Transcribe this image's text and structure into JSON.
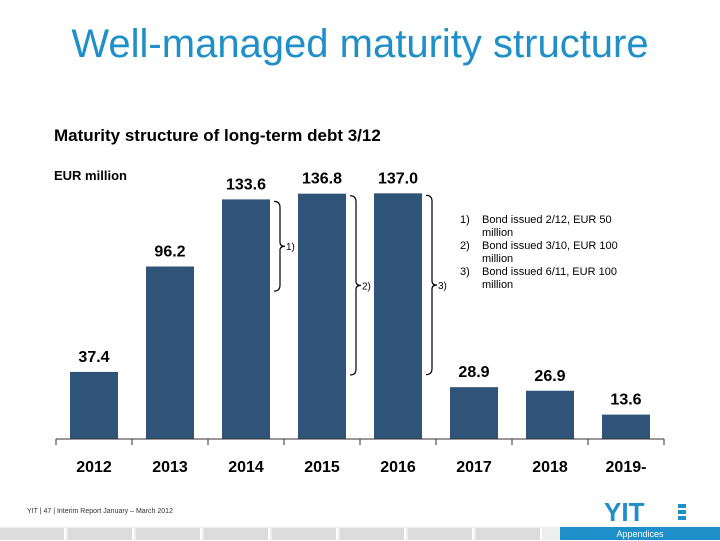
{
  "page": {
    "title": "Well-managed maturity structure",
    "subtitle": "Maturity structure of long-term debt 3/12",
    "unit": "EUR million",
    "footer": "YIT  |  47  |  Interim Report January – March 2012",
    "logo_text": "YIT",
    "section_label": "Appendices"
  },
  "colors": {
    "title": "#1f8fc9",
    "bar": "#2f5478",
    "accent": "#1f8fc9"
  },
  "footnotes": [
    {
      "num": "1)",
      "text": "Bond issued 2/12, EUR 50 million"
    },
    {
      "num": "2)",
      "text": "Bond issued 3/10, EUR 100 million"
    },
    {
      "num": "3)",
      "text": "Bond issued 6/11, EUR 100 million"
    }
  ],
  "chart_data": {
    "type": "bar",
    "title": "Maturity structure of long-term debt 3/12",
    "ylabel": "EUR million",
    "categories": [
      "2012",
      "2013",
      "2014",
      "2015",
      "2016",
      "2017",
      "2018",
      "2019-"
    ],
    "values": [
      37.4,
      96.2,
      133.6,
      136.8,
      137.0,
      28.9,
      26.9,
      13.6
    ],
    "value_labels": [
      "37.4",
      "96.2",
      "133.6",
      "136.8",
      "137.0",
      "28.9",
      "26.9",
      "13.6"
    ],
    "ylim": [
      0,
      150
    ],
    "grid": false,
    "legend": "none",
    "annotations": [
      {
        "label": "1)",
        "category": "2014"
      },
      {
        "label": "2)",
        "category": "2015"
      },
      {
        "label": "3)",
        "category": "2016"
      }
    ]
  }
}
